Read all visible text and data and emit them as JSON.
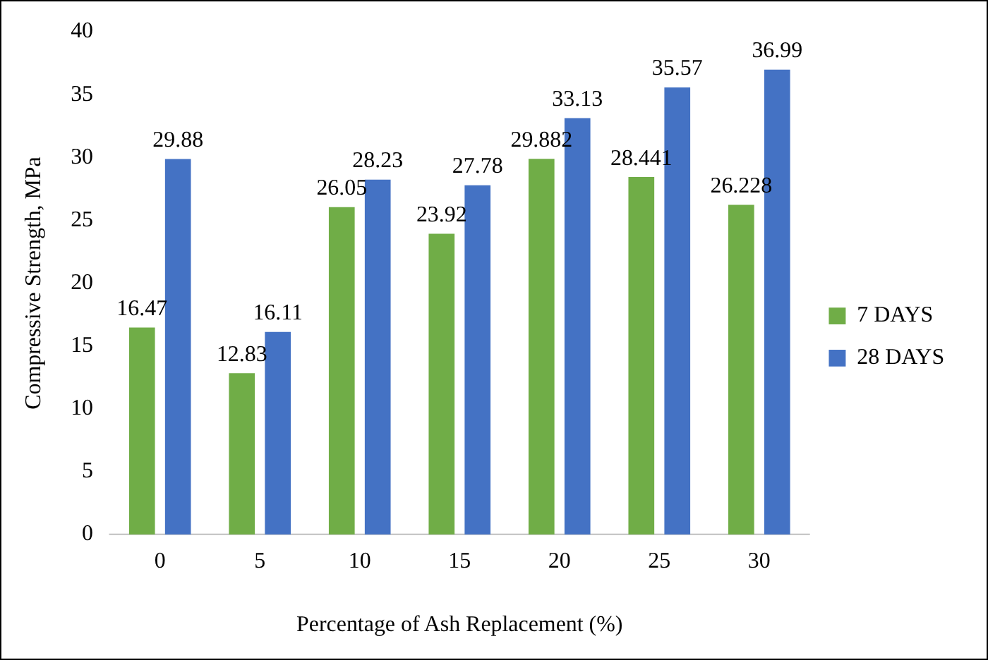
{
  "chart_data": {
    "type": "bar",
    "xlabel": "Percentage of Ash Replacement (%)",
    "ylabel": "Compressive Strength, MPa",
    "categories": [
      "0",
      "5",
      "10",
      "15",
      "20",
      "25",
      "30"
    ],
    "series": [
      {
        "name": "7 DAYS",
        "color": "#70ad47",
        "values": [
          16.47,
          12.83,
          26.05,
          23.92,
          29.882,
          28.441,
          26.228
        ]
      },
      {
        "name": "28 DAYS",
        "color": "#4472c4",
        "values": [
          29.88,
          16.11,
          28.23,
          27.78,
          33.13,
          35.57,
          36.99
        ]
      }
    ],
    "ylim": [
      0,
      40
    ],
    "yticks": [
      0,
      5,
      10,
      15,
      20,
      25,
      30,
      35,
      40
    ],
    "grid": false,
    "legend": "right",
    "data_labels": true
  }
}
